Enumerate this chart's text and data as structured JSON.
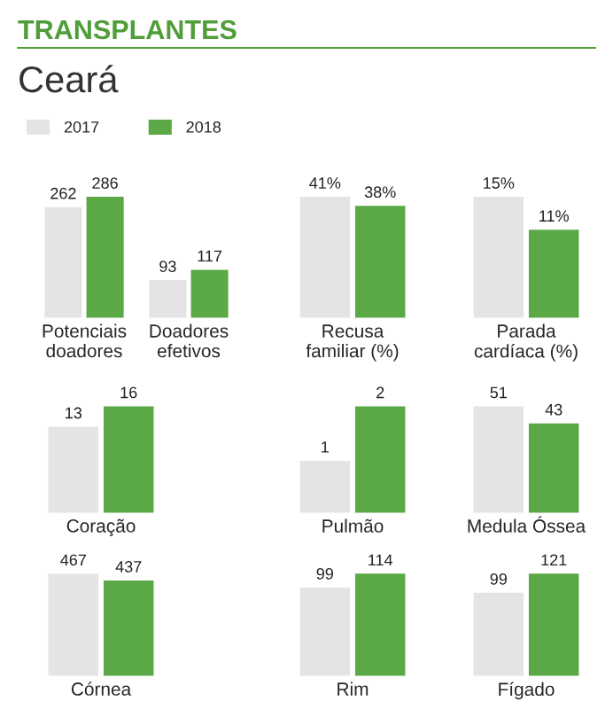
{
  "chart_data": [
    {
      "type": "bar",
      "title": "TRANSPLANTES",
      "subtitle": "Ceará",
      "categories": [
        "Potenciais\ndoadores",
        "Doadores\nefetivos"
      ],
      "legend": "top left",
      "tick_labels": "x",
      "data_labels": true,
      "series": [
        {
          "name": "2017",
          "color": "#e4e4e6",
          "values": [
            262,
            93
          ]
        },
        {
          "name": "2018",
          "color": "#5aa846",
          "values": [
            286,
            117
          ]
        }
      ]
    },
    {
      "type": "bar",
      "categories": [
        "Recusa\nfamiliar (%)"
      ],
      "tick_labels": "x",
      "series": [
        {
          "color": "#e4e4e6",
          "values": [
            41
          ],
          "value_labels": [
            "41%"
          ]
        },
        {
          "color": "#5aa846",
          "values": [
            38
          ],
          "value_labels": [
            "38%"
          ]
        }
      ]
    },
    {
      "type": "bar",
      "categories": [
        "Parada\ncardíaca (%)"
      ],
      "tick_labels": "x",
      "series": [
        {
          "color": "#e4e4e6",
          "values": [
            15
          ],
          "value_labels": [
            "15%"
          ]
        },
        {
          "color": "#5aa846",
          "values": [
            11
          ],
          "value_labels": [
            "11%"
          ]
        }
      ]
    },
    {
      "type": "bar",
      "categories": [
        "Coração"
      ],
      "tick_labels": "x",
      "data_labels": true,
      "series": [
        {
          "color": "#e4e4e6",
          "values": [
            13
          ]
        },
        {
          "color": "#5aa846",
          "values": [
            16
          ]
        }
      ]
    },
    {
      "type": "bar",
      "categories": [
        "Pulmão"
      ],
      "tick_labels": "x",
      "data_labels": true,
      "series": [
        {
          "color": "#e4e4e6",
          "values": [
            1
          ]
        },
        {
          "color": "#5aa846",
          "values": [
            2
          ]
        }
      ]
    },
    {
      "type": "bar",
      "categories": [
        "Medula Óssea"
      ],
      "tick_labels": "x",
      "data_labels": true,
      "series": [
        {
          "color": "#e4e4e6",
          "values": [
            51
          ]
        },
        {
          "color": "#5aa846",
          "values": [
            43
          ]
        }
      ]
    },
    {
      "type": "bar",
      "categories": [
        "Córnea"
      ],
      "tick_labels": "x",
      "data_labels": true,
      "series": [
        {
          "color": "#e4e4e6",
          "values": [
            467
          ]
        },
        {
          "color": "#5aa846",
          "values": [
            437
          ]
        }
      ]
    },
    {
      "type": "bar",
      "categories": [
        "Rim"
      ],
      "tick_labels": "x",
      "data_labels": true,
      "series": [
        {
          "color": "#e4e4e6",
          "values": [
            99
          ]
        },
        {
          "color": "#5aa846",
          "values": [
            114
          ]
        }
      ]
    },
    {
      "type": "bar",
      "categories": [
        "Fígado"
      ],
      "tick_labels": "x",
      "data_labels": true,
      "series": [
        {
          "color": "#e4e4e6",
          "values": [
            99
          ]
        },
        {
          "color": "#5aa846",
          "values": [
            121
          ]
        }
      ]
    }
  ]
}
